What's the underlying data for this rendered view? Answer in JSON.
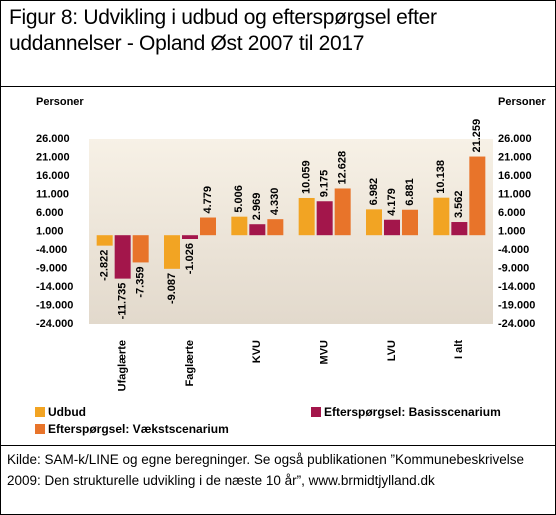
{
  "title": "Figur 8: Udvikling i udbud og efterspørgsel efter uddannelser - Opland Øst 2007 til 2017",
  "chart_data": {
    "type": "bar",
    "ylabel": "Personer",
    "y2label": "Personer",
    "categories": [
      "Ufaglærte",
      "Faglærte",
      "KVU",
      "MVU",
      "LVU",
      "I alt"
    ],
    "series": [
      {
        "name": "Udbud",
        "color": "#f2a423",
        "values": [
          -2822,
          -9087,
          5006,
          10059,
          6982,
          10138
        ],
        "value_labels": [
          "-2.822",
          "-9.087",
          "5.006",
          "10.059",
          "6.982",
          "10.138"
        ]
      },
      {
        "name": "Efterspørgsel: Basisscenarium",
        "color": "#a3164b",
        "values": [
          -11735,
          -1026,
          2969,
          9175,
          4179,
          3562
        ],
        "value_labels": [
          "-11.735",
          "-1.026",
          "2.969",
          "9.175",
          "4.179",
          "3.562"
        ]
      },
      {
        "name": "Efterspørgsel: Vækstscenarium",
        "color": "#e8742a",
        "values": [
          -7359,
          4779,
          4330,
          12628,
          6881,
          21259
        ],
        "value_labels": [
          "-7.359",
          "4.779",
          "4.330",
          "12.628",
          "6.881",
          "21.259"
        ]
      }
    ],
    "ylim": [
      -24000,
      26000
    ],
    "yticks": [
      {
        "value": 26000,
        "label": "26.000"
      },
      {
        "value": 21000,
        "label": "21.000"
      },
      {
        "value": 16000,
        "label": "16.000"
      },
      {
        "value": 11000,
        "label": "11.000"
      },
      {
        "value": 6000,
        "label": "6.000"
      },
      {
        "value": 1000,
        "label": "1.000"
      },
      {
        "value": -4000,
        "label": "-4.000"
      },
      {
        "value": -9000,
        "label": "-9.000"
      },
      {
        "value": -14000,
        "label": "-14.000"
      },
      {
        "value": -19000,
        "label": "-19.000"
      },
      {
        "value": -24000,
        "label": "-24.000"
      }
    ],
    "grid": false
  },
  "source": "Kilde: SAM-k/LINE og egne beregninger. Se også publikationen ”Kommunebeskrivelse 2009: Den strukturelle udvikling i de næste 10 år”, www.brmidtjylland.dk"
}
